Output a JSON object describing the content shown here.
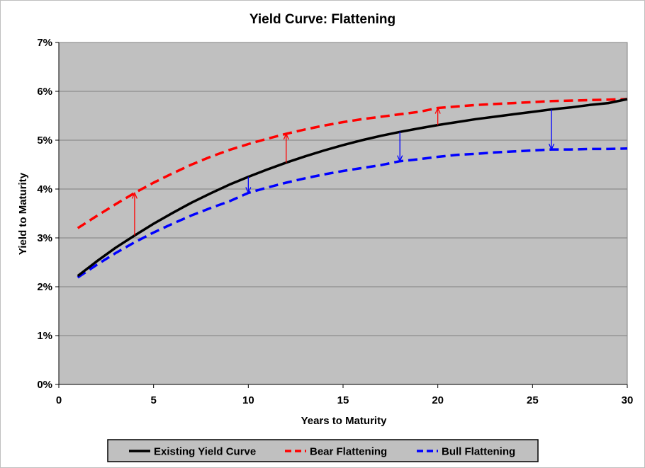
{
  "chart_data": {
    "type": "line",
    "title": "Yield Curve: Flattening",
    "xlabel": "Years to Maturity",
    "ylabel": "Yield to Maturity",
    "xlim": [
      0,
      30
    ],
    "ylim": [
      0,
      0.07
    ],
    "x_ticks": [
      0,
      5,
      10,
      15,
      20,
      25,
      30
    ],
    "x_tick_labels": [
      "0",
      "5",
      "10",
      "15",
      "20",
      "25",
      "30"
    ],
    "y_ticks": [
      0,
      0.01,
      0.02,
      0.03,
      0.04,
      0.05,
      0.06,
      0.07
    ],
    "y_tick_labels": [
      "0%",
      "1%",
      "2%",
      "3%",
      "4%",
      "5%",
      "6%",
      "7%"
    ],
    "grid": "horizontal",
    "legend_position": "bottom",
    "plot_background": "#c0c0c0",
    "series": [
      {
        "name": "Existing Yield Curve",
        "color": "#000000",
        "dash": "solid",
        "x": [
          1,
          2,
          3,
          4,
          5,
          6,
          7,
          8,
          9,
          10,
          11,
          12,
          13,
          14,
          15,
          16,
          17,
          18,
          19,
          20,
          21,
          22,
          23,
          24,
          25,
          26,
          27,
          28,
          29,
          30
        ],
        "y": [
          0.0222,
          0.0252,
          0.028,
          0.0305,
          0.0329,
          0.0351,
          0.0372,
          0.0391,
          0.0409,
          0.0425,
          0.044,
          0.0454,
          0.0467,
          0.0479,
          0.049,
          0.05,
          0.0509,
          0.0517,
          0.0524,
          0.0531,
          0.0537,
          0.0543,
          0.0548,
          0.0553,
          0.0558,
          0.0563,
          0.0567,
          0.0572,
          0.0576,
          0.0584
        ]
      },
      {
        "name": "Bear Flattening",
        "color": "#ff0000",
        "dash": "dashed",
        "x": [
          1,
          2,
          3,
          4,
          5,
          6,
          7,
          8,
          9,
          10,
          11,
          12,
          13,
          14,
          15,
          16,
          17,
          18,
          19,
          20,
          21,
          22,
          23,
          24,
          25,
          26,
          27,
          28,
          29,
          30
        ],
        "y": [
          0.032,
          0.0345,
          0.0369,
          0.0392,
          0.0413,
          0.0432,
          0.045,
          0.0466,
          0.048,
          0.0492,
          0.0503,
          0.0513,
          0.0522,
          0.053,
          0.0537,
          0.0543,
          0.0548,
          0.0553,
          0.0558,
          0.0566,
          0.0569,
          0.0572,
          0.0574,
          0.0576,
          0.0578,
          0.058,
          0.0581,
          0.0582,
          0.0583,
          0.0584
        ]
      },
      {
        "name": "Bull Flattening",
        "color": "#0000ff",
        "dash": "dashed",
        "x": [
          1,
          2,
          3,
          4,
          5,
          6,
          7,
          8,
          9,
          10,
          11,
          12,
          13,
          14,
          15,
          16,
          17,
          18,
          19,
          20,
          21,
          22,
          23,
          24,
          25,
          26,
          27,
          28,
          29,
          30
        ],
        "y": [
          0.0219,
          0.0245,
          0.0269,
          0.0291,
          0.0311,
          0.0329,
          0.0346,
          0.0361,
          0.0375,
          0.0392,
          0.0403,
          0.0413,
          0.0422,
          0.043,
          0.0437,
          0.0443,
          0.0449,
          0.0457,
          0.0461,
          0.0466,
          0.047,
          0.0472,
          0.0475,
          0.0477,
          0.0479,
          0.0481,
          0.0481,
          0.0482,
          0.0482,
          0.0483
        ]
      }
    ],
    "arrows": [
      {
        "x": 4,
        "from": 0.0305,
        "to": 0.0392,
        "color": "#ff0000"
      },
      {
        "x": 12,
        "from": 0.0454,
        "to": 0.0513,
        "color": "#ff0000"
      },
      {
        "x": 20,
        "from": 0.0531,
        "to": 0.0566,
        "color": "#ff0000"
      },
      {
        "x": 10,
        "from": 0.0425,
        "to": 0.0392,
        "color": "#0000ff"
      },
      {
        "x": 18,
        "from": 0.0517,
        "to": 0.0457,
        "color": "#0000ff"
      },
      {
        "x": 26,
        "from": 0.0563,
        "to": 0.0481,
        "color": "#0000ff"
      }
    ]
  }
}
